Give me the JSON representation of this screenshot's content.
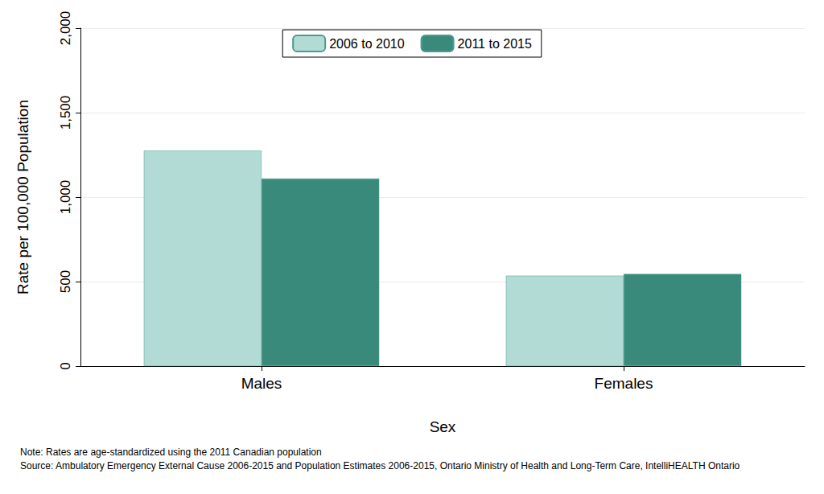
{
  "chart_data": {
    "type": "bar",
    "x_label": "Sex",
    "y_label": "Rate per 100,000 Population",
    "categories": [
      "Males",
      "Females"
    ],
    "series": [
      {
        "name": "2006 to 2010",
        "color": "#b3dbd6",
        "values": [
          1275,
          535
        ]
      },
      {
        "name": "2011 to 2015",
        "color": "#3a8a7c",
        "values": [
          1110,
          545
        ]
      }
    ],
    "ylim": [
      0,
      2000
    ],
    "yticks": [
      0,
      500,
      1000,
      1500,
      2000
    ],
    "grid": true,
    "legend": "top",
    "annotations": [
      "Note: Rates are age-standardized using the 2011 Canadian population",
      "Source: Ambulatory Emergency External Cause 2006-2015 and Population Estimates 2006-2015, Ontario Ministry of Health and Long-Term Care, IntelliHEALTH Ontario"
    ]
  }
}
